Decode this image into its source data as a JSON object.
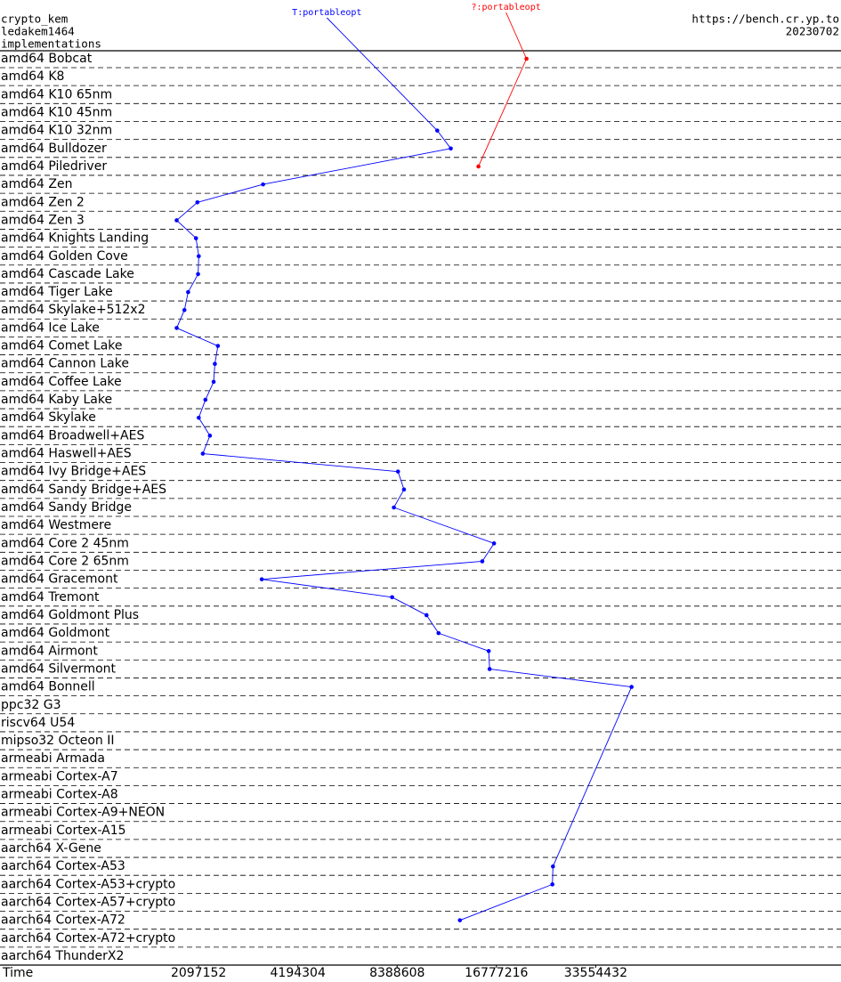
{
  "chart_data": {
    "type": "line",
    "header_left": [
      "crypto_kem",
      "ledakem1464",
      "implementations"
    ],
    "header_right": [
      "https://bench.cr.yp.to",
      "20230702"
    ],
    "xlabel": "Time",
    "xscale": "log",
    "xlim": [
      524288,
      186000000
    ],
    "xticks": [
      2097152,
      4194304,
      8388608,
      16777216,
      33554432
    ],
    "categories": [
      "amd64 Bobcat",
      "amd64 K8",
      "amd64 K10 65nm",
      "amd64 K10 45nm",
      "amd64 K10 32nm",
      "amd64 Bulldozer",
      "amd64 Piledriver",
      "amd64 Zen",
      "amd64 Zen 2",
      "amd64 Zen 3",
      "amd64 Knights Landing",
      "amd64 Golden Cove",
      "amd64 Cascade Lake",
      "amd64 Tiger Lake",
      "amd64 Skylake+512x2",
      "amd64 Ice Lake",
      "amd64 Comet Lake",
      "amd64 Cannon Lake",
      "amd64 Coffee Lake",
      "amd64 Kaby Lake",
      "amd64 Skylake",
      "amd64 Broadwell+AES",
      "amd64 Haswell+AES",
      "amd64 Ivy Bridge+AES",
      "amd64 Sandy Bridge+AES",
      "amd64 Sandy Bridge",
      "amd64 Westmere",
      "amd64 Core 2 45nm",
      "amd64 Core 2 65nm",
      "amd64 Gracemont",
      "amd64 Tremont",
      "amd64 Goldmont Plus",
      "amd64 Goldmont",
      "amd64 Airmont",
      "amd64 Silvermont",
      "amd64 Bonnell",
      "ppc32 G3",
      "riscv64 U54",
      "mipso32 Octeon II",
      "armeabi Armada",
      "armeabi Cortex-A7",
      "armeabi Cortex-A8",
      "armeabi Cortex-A9+NEON",
      "armeabi Cortex-A15",
      "aarch64 X-Gene",
      "aarch64 Cortex-A53",
      "aarch64 Cortex-A53+crypto",
      "aarch64 Cortex-A57+crypto",
      "aarch64 Cortex-A72",
      "aarch64 Cortex-A72+crypto",
      "aarch64 ThunderX2"
    ],
    "series": [
      {
        "name": "T:portableopt",
        "color": "#0000ff",
        "values": [
          null,
          null,
          null,
          null,
          11100000,
          12200000,
          null,
          3290000,
          2080000,
          1800000,
          2060000,
          2100000,
          2090000,
          1950000,
          1900000,
          1800000,
          2400000,
          2350000,
          2330000,
          2200000,
          2100000,
          2270000,
          2160000,
          8440000,
          8800000,
          8200000,
          null,
          16500000,
          15200000,
          3260000,
          8100000,
          10300000,
          11200000,
          15900000,
          16000000,
          43100000,
          null,
          null,
          null,
          null,
          null,
          null,
          null,
          null,
          null,
          24900000,
          24800000,
          null,
          13000000,
          null,
          null
        ]
      },
      {
        "name": "?:portableopt",
        "color": "#ff0000",
        "values": [
          20700000,
          null,
          null,
          null,
          null,
          null,
          14800000,
          null,
          null,
          null,
          null,
          null,
          null,
          null,
          null,
          null,
          null,
          null,
          null,
          null,
          null,
          null,
          null,
          null,
          null,
          null,
          null,
          null,
          null,
          null,
          null,
          null,
          null,
          null,
          null,
          null,
          null,
          null,
          null,
          null,
          null,
          null,
          null,
          null,
          null,
          null,
          null,
          null,
          null,
          null,
          null
        ]
      }
    ]
  }
}
